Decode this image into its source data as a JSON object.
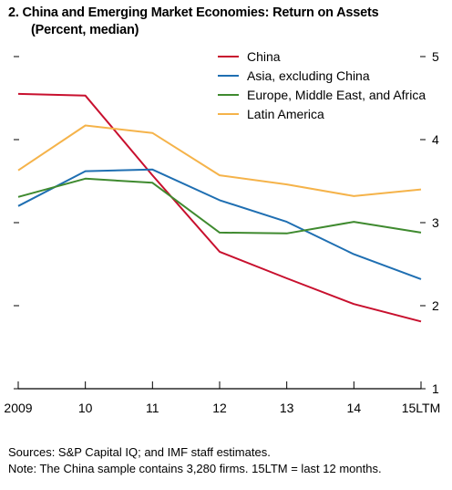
{
  "header": {
    "title": "2. China and Emerging Market Economies: Return on Assets",
    "subtitle": "(Percent, median)"
  },
  "notes": {
    "sources": "Sources: S&P Capital IQ; and IMF staff estimates.",
    "note": "Note: The China sample contains 3,280 firms. 15LTM = last 12 months."
  },
  "chart_data": {
    "type": "line",
    "title": "2. China and Emerging Market Economies: Return on Assets",
    "subtitle": "(Percent, median)",
    "categories": [
      "2009",
      "10",
      "11",
      "12",
      "13",
      "14",
      "15LTM"
    ],
    "ylim": [
      1,
      5
    ],
    "yticks": [
      "1",
      "2",
      "3",
      "4",
      "5"
    ],
    "y_axis_side": "right",
    "grid": false,
    "legend_position": "top-right",
    "series": [
      {
        "name": "China",
        "color": "#c8102e",
        "values": [
          4.55,
          4.53,
          3.57,
          2.65,
          2.33,
          2.02,
          1.81
        ]
      },
      {
        "name": "Asia, excluding China",
        "color": "#1f6fb2",
        "values": [
          3.2,
          3.62,
          3.64,
          3.27,
          3.01,
          2.62,
          2.32
        ]
      },
      {
        "name": "Europe, Middle East, and Africa",
        "color": "#3f8a2f",
        "values": [
          3.31,
          3.53,
          3.48,
          2.88,
          2.87,
          3.01,
          2.88
        ]
      },
      {
        "name": "Latin America",
        "color": "#f5b34a",
        "values": [
          3.63,
          4.17,
          4.08,
          3.57,
          3.46,
          3.32,
          3.4
        ]
      }
    ]
  }
}
